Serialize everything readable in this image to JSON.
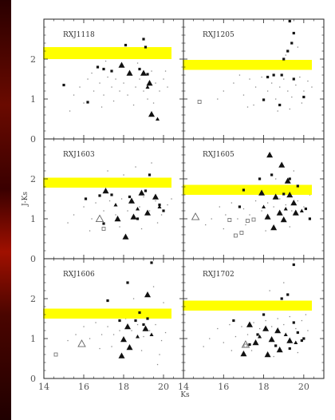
{
  "chart_data": {
    "type": "scatter",
    "layout": "3x2 panel grid",
    "xlabel": "Ks",
    "ylabel": "J-Ks",
    "xlim": [
      14,
      21
    ],
    "ylim": [
      0,
      3
    ],
    "xticks": [
      14,
      16,
      18,
      20
    ],
    "yticks": [
      0,
      1,
      2
    ],
    "colors": {
      "frame": "#222222",
      "highlight": "#ffff00",
      "points": "#111111",
      "minor": "#888888"
    },
    "panels": [
      {
        "name": "RXJ1118",
        "highlight_band": [
          2.0,
          2.3
        ],
        "triangles": [
          [
            17.9,
            1.85
          ],
          [
            18.3,
            1.65
          ],
          [
            19.0,
            1.65
          ],
          [
            19.3,
            1.4
          ],
          [
            19.4,
            0.62
          ]
        ],
        "small_triangles": [
          [
            19.2,
            1.3
          ],
          [
            19.7,
            0.5
          ]
        ],
        "squares": [
          [
            16.7,
            1.8
          ],
          [
            17.0,
            1.75
          ],
          [
            17.4,
            1.7
          ],
          [
            18.8,
            1.75
          ],
          [
            19.0,
            2.5
          ],
          [
            19.1,
            2.3
          ],
          [
            18.1,
            2.35
          ],
          [
            19.2,
            1.62
          ],
          [
            15.0,
            1.35
          ],
          [
            16.2,
            0.92
          ]
        ],
        "open_triangles": [],
        "open_squares": [],
        "dots": [
          [
            15.5,
            1.1
          ],
          [
            15.8,
            1.3
          ],
          [
            16.0,
            0.9
          ],
          [
            16.2,
            1.5
          ],
          [
            16.5,
            1.2
          ],
          [
            16.8,
            1.4
          ],
          [
            17.0,
            1.1
          ],
          [
            17.2,
            1.55
          ],
          [
            17.4,
            1.3
          ],
          [
            17.6,
            1.5
          ],
          [
            17.8,
            1.2
          ],
          [
            18.0,
            1.4
          ],
          [
            18.2,
            1.1
          ],
          [
            18.4,
            1.6
          ],
          [
            18.6,
            1.3
          ],
          [
            18.8,
            1.5
          ],
          [
            19.0,
            1.2
          ],
          [
            19.2,
            1.0
          ],
          [
            19.4,
            1.7
          ],
          [
            19.6,
            1.4
          ],
          [
            19.8,
            1.2
          ],
          [
            20.0,
            1.5
          ],
          [
            20.2,
            1.3
          ],
          [
            17.5,
            0.95
          ],
          [
            18.5,
            0.85
          ],
          [
            19.5,
            0.9
          ],
          [
            16.4,
            1.65
          ],
          [
            17.1,
            1.95
          ],
          [
            18.7,
            1.9
          ],
          [
            15.3,
            0.7
          ],
          [
            20.1,
            1.7
          ],
          [
            16.9,
            0.8
          ]
        ]
      },
      {
        "name": "RXJ1205",
        "highlight_band": [
          1.73,
          1.98
        ],
        "triangles": [],
        "small_triangles": [],
        "squares": [
          [
            19.3,
            2.95
          ],
          [
            19.5,
            2.65
          ],
          [
            19.4,
            2.4
          ],
          [
            19.2,
            2.2
          ],
          [
            19.0,
            2.0
          ],
          [
            18.5,
            1.6
          ],
          [
            18.2,
            1.55
          ],
          [
            18.0,
            0.98
          ],
          [
            18.9,
            1.6
          ],
          [
            19.5,
            1.5
          ],
          [
            20.0,
            1.05
          ],
          [
            18.8,
            0.85
          ]
        ],
        "open_triangles": [],
        "open_squares": [
          [
            14.8,
            0.93
          ]
        ],
        "dots": [
          [
            16.0,
            1.2
          ],
          [
            16.5,
            1.4
          ],
          [
            17.0,
            1.1
          ],
          [
            17.3,
            1.5
          ],
          [
            17.6,
            1.3
          ],
          [
            17.9,
            1.55
          ],
          [
            18.2,
            1.2
          ],
          [
            18.4,
            1.4
          ],
          [
            18.6,
            1.0
          ],
          [
            18.8,
            1.3
          ],
          [
            19.0,
            1.5
          ],
          [
            19.2,
            1.2
          ],
          [
            19.4,
            1.05
          ],
          [
            19.6,
            1.35
          ],
          [
            19.8,
            1.55
          ],
          [
            20.0,
            1.2
          ],
          [
            20.2,
            1.45
          ],
          [
            20.4,
            1.3
          ],
          [
            17.5,
            0.85
          ],
          [
            18.7,
            0.7
          ],
          [
            19.9,
            0.9
          ],
          [
            16.8,
            1.6
          ],
          [
            19.1,
            2.1
          ],
          [
            19.7,
            2.3
          ],
          [
            20.3,
            1.9
          ],
          [
            15.7,
            1.0
          ],
          [
            17.2,
            0.8
          ],
          [
            19.3,
            0.75
          ]
        ]
      },
      {
        "name": "RXJ1603",
        "highlight_band": [
          1.78,
          2.03
        ],
        "triangles": [
          [
            17.1,
            1.7
          ],
          [
            18.4,
            1.45
          ],
          [
            18.9,
            1.65
          ],
          [
            19.6,
            1.55
          ],
          [
            17.7,
            1.0
          ],
          [
            18.5,
            1.05
          ],
          [
            19.2,
            1.15
          ],
          [
            18.1,
            0.55
          ]
        ],
        "small_triangles": [
          [
            17.6,
            1.35
          ],
          [
            18.7,
            1.25
          ],
          [
            19.8,
            1.3
          ]
        ],
        "squares": [
          [
            16.1,
            1.5
          ],
          [
            16.8,
            1.58
          ],
          [
            17.4,
            1.6
          ],
          [
            18.3,
            1.55
          ],
          [
            19.1,
            1.7
          ],
          [
            19.3,
            2.1
          ],
          [
            19.8,
            1.35
          ],
          [
            17.0,
            0.88
          ],
          [
            18.7,
            1.0
          ],
          [
            20.0,
            1.2
          ]
        ],
        "open_triangles": [
          [
            16.8,
            1.0
          ]
        ],
        "open_squares": [
          [
            17.0,
            0.75
          ]
        ],
        "dots": [
          [
            15.5,
            1.1
          ],
          [
            16.0,
            1.3
          ],
          [
            16.4,
            1.0
          ],
          [
            16.6,
            1.4
          ],
          [
            17.0,
            1.2
          ],
          [
            17.3,
            1.45
          ],
          [
            17.6,
            1.1
          ],
          [
            17.9,
            1.5
          ],
          [
            18.2,
            1.2
          ],
          [
            18.5,
            1.4
          ],
          [
            18.8,
            1.3
          ],
          [
            19.0,
            1.55
          ],
          [
            19.3,
            1.2
          ],
          [
            19.6,
            1.45
          ],
          [
            19.9,
            1.1
          ],
          [
            20.2,
            1.35
          ],
          [
            20.4,
            1.5
          ],
          [
            17.8,
            0.8
          ],
          [
            18.9,
            0.75
          ],
          [
            19.7,
            0.9
          ],
          [
            16.3,
            0.7
          ],
          [
            18.0,
            2.1
          ],
          [
            18.6,
            2.3
          ],
          [
            19.4,
            2.4
          ],
          [
            20.1,
            1.8
          ],
          [
            15.2,
            0.9
          ],
          [
            17.2,
            2.2
          ]
        ]
      },
      {
        "name": "RXJ1605",
        "highlight_band": [
          1.6,
          1.85
        ],
        "triangles": [
          [
            18.3,
            2.6
          ],
          [
            18.9,
            2.35
          ],
          [
            19.2,
            1.95
          ],
          [
            17.9,
            1.65
          ],
          [
            18.6,
            1.55
          ],
          [
            19.3,
            1.6
          ],
          [
            19.5,
            1.4
          ],
          [
            18.8,
            1.15
          ],
          [
            19.6,
            1.15
          ],
          [
            18.2,
            1.05
          ],
          [
            19.0,
            0.98
          ],
          [
            18.5,
            0.78
          ]
        ],
        "small_triangles": [
          [
            18.0,
            1.3
          ],
          [
            19.1,
            1.25
          ],
          [
            19.9,
            1.2
          ]
        ],
        "squares": [
          [
            16.8,
            1.3
          ],
          [
            17.8,
            2.0
          ],
          [
            18.4,
            2.1
          ],
          [
            19.3,
            2.0
          ],
          [
            19.7,
            1.82
          ],
          [
            19.0,
            1.62
          ],
          [
            20.1,
            1.25
          ],
          [
            20.3,
            1.0
          ],
          [
            17.0,
            1.72
          ]
        ],
        "open_triangles": [
          [
            14.6,
            1.05
          ]
        ],
        "open_squares": [
          [
            16.3,
            0.97
          ],
          [
            16.6,
            0.58
          ],
          [
            16.9,
            0.65
          ],
          [
            17.2,
            0.95
          ],
          [
            17.5,
            0.98
          ]
        ],
        "dots": [
          [
            15.4,
            1.0
          ],
          [
            15.8,
            1.3
          ],
          [
            16.1,
            1.1
          ],
          [
            16.4,
            1.4
          ],
          [
            16.7,
            1.0
          ],
          [
            17.0,
            1.25
          ],
          [
            17.3,
            1.1
          ],
          [
            17.6,
            1.45
          ],
          [
            17.9,
            1.2
          ],
          [
            18.2,
            1.4
          ],
          [
            18.5,
            1.3
          ],
          [
            18.8,
            1.5
          ],
          [
            19.1,
            1.35
          ],
          [
            19.4,
            1.2
          ],
          [
            19.7,
            1.45
          ],
          [
            20.0,
            1.3
          ],
          [
            20.3,
            1.6
          ],
          [
            17.1,
            0.85
          ],
          [
            18.1,
            0.7
          ],
          [
            19.3,
            0.8
          ],
          [
            16.0,
            0.75
          ],
          [
            18.6,
            2.0
          ],
          [
            19.5,
            2.2
          ],
          [
            15.1,
            0.85
          ]
        ]
      },
      {
        "name": "RXJ1606",
        "highlight_band": [
          1.5,
          1.75
        ],
        "triangles": [
          [
            18.2,
            1.3
          ],
          [
            19.1,
            1.25
          ],
          [
            18.0,
            0.98
          ],
          [
            18.3,
            0.78
          ],
          [
            17.9,
            0.57
          ],
          [
            19.2,
            2.1
          ]
        ],
        "small_triangles": [
          [
            18.7,
            1.05
          ],
          [
            19.4,
            1.1
          ]
        ],
        "squares": [
          [
            17.2,
            1.95
          ],
          [
            17.8,
            1.45
          ],
          [
            18.6,
            1.45
          ],
          [
            19.4,
            2.9
          ],
          [
            19.0,
            1.35
          ],
          [
            18.2,
            2.4
          ],
          [
            18.8,
            1.65
          ],
          [
            19.2,
            1.5
          ]
        ],
        "open_triangles": [
          [
            15.9,
            0.87
          ]
        ],
        "open_squares": [
          [
            14.6,
            0.6
          ]
        ],
        "dots": [
          [
            15.6,
            1.1
          ],
          [
            16.0,
            1.3
          ],
          [
            16.3,
            1.0
          ],
          [
            16.6,
            1.4
          ],
          [
            16.9,
            1.1
          ],
          [
            17.2,
            1.3
          ],
          [
            17.5,
            1.1
          ],
          [
            17.8,
            1.2
          ],
          [
            18.1,
            1.5
          ],
          [
            18.4,
            1.2
          ],
          [
            18.7,
            1.35
          ],
          [
            19.0,
            1.05
          ],
          [
            19.3,
            1.2
          ],
          [
            19.6,
            1.35
          ],
          [
            19.9,
            0.95
          ],
          [
            20.1,
            1.15
          ],
          [
            17.4,
            0.8
          ],
          [
            18.9,
            0.7
          ],
          [
            19.8,
            0.6
          ],
          [
            19.7,
            0.35
          ],
          [
            16.8,
            0.75
          ],
          [
            18.5,
            2.0
          ],
          [
            19.5,
            2.3
          ],
          [
            20.0,
            1.9
          ],
          [
            15.2,
            0.95
          ]
        ]
      },
      {
        "name": "RXJ1702",
        "highlight_band": [
          1.7,
          1.95
        ],
        "triangles": [
          [
            17.3,
            1.35
          ],
          [
            18.1,
            1.25
          ],
          [
            18.7,
            1.2
          ],
          [
            17.6,
            0.9
          ],
          [
            18.4,
            0.98
          ],
          [
            19.3,
            0.95
          ],
          [
            17.0,
            0.62
          ],
          [
            18.2,
            0.6
          ],
          [
            18.8,
            0.72
          ]
        ],
        "small_triangles": [
          [
            17.8,
            1.05
          ],
          [
            19.1,
            1.1
          ],
          [
            19.6,
            0.9
          ]
        ],
        "squares": [
          [
            16.5,
            1.45
          ],
          [
            17.7,
            1.1
          ],
          [
            18.0,
            1.6
          ],
          [
            18.9,
            2.0
          ],
          [
            19.2,
            2.1
          ],
          [
            19.5,
            1.4
          ],
          [
            19.7,
            1.15
          ],
          [
            20.0,
            1.0
          ],
          [
            19.9,
            0.95
          ],
          [
            18.6,
            0.82
          ],
          [
            19.3,
            0.75
          ],
          [
            19.5,
            2.85
          ],
          [
            17.3,
            0.85
          ]
        ],
        "open_triangles": [
          [
            17.1,
            0.85
          ]
        ],
        "open_squares": [
          [
            17.1,
            0.82
          ]
        ],
        "dots": [
          [
            15.3,
            1.0
          ],
          [
            15.7,
            1.25
          ],
          [
            16.0,
            0.9
          ],
          [
            16.3,
            1.35
          ],
          [
            16.6,
            1.05
          ],
          [
            16.9,
            1.3
          ],
          [
            17.2,
            1.1
          ],
          [
            17.5,
            1.4
          ],
          [
            17.8,
            1.25
          ],
          [
            18.1,
            1.45
          ],
          [
            18.4,
            1.3
          ],
          [
            18.7,
            1.5
          ],
          [
            19.0,
            1.35
          ],
          [
            19.3,
            1.55
          ],
          [
            19.6,
            1.25
          ],
          [
            19.9,
            1.45
          ],
          [
            20.2,
            1.2
          ],
          [
            17.4,
            0.7
          ],
          [
            18.5,
            0.55
          ],
          [
            19.7,
            0.65
          ],
          [
            16.4,
            0.7
          ],
          [
            18.3,
            2.2
          ],
          [
            19.0,
            2.4
          ],
          [
            20.1,
            1.6
          ],
          [
            15.0,
            0.8
          ]
        ]
      }
    ]
  }
}
